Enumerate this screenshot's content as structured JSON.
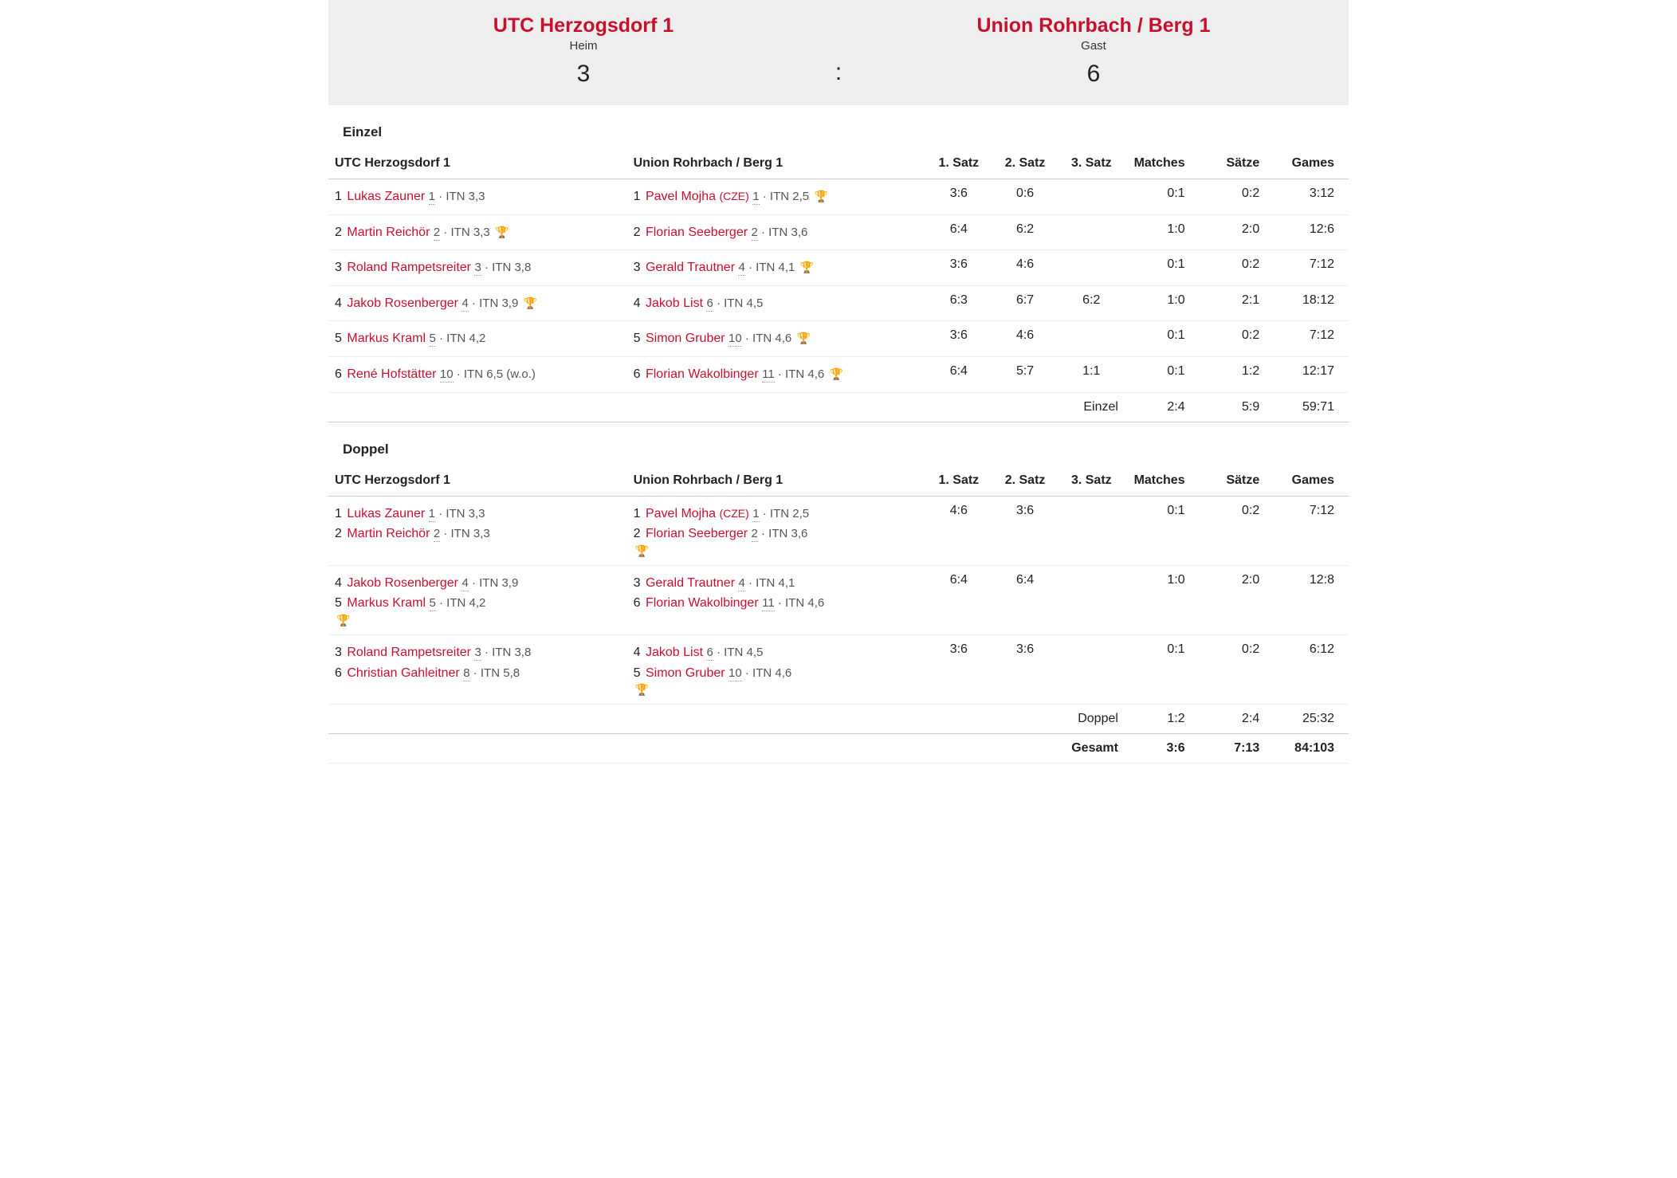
{
  "colors": {
    "accent": "#c8102e",
    "scorebox_bg": "#eeeeee",
    "border": "#cccccc",
    "border_light": "#eeeeee",
    "border_dark": "#888888",
    "meta": "#555555"
  },
  "scorebox": {
    "home": {
      "name": "UTC Herzogsdorf 1",
      "role": "Heim",
      "score": "3"
    },
    "away": {
      "name": "Union Rohrbach / Berg 1",
      "role": "Gast",
      "score": "6"
    },
    "sep": ":"
  },
  "labels": {
    "einzel": "Einzel",
    "doppel": "Doppel",
    "col_home": "UTC Herzogsdorf 1",
    "col_away": "Union Rohrbach / Berg 1",
    "satz1": "1. Satz",
    "satz2": "2. Satz",
    "satz3": "3. Satz",
    "matches": "Matches",
    "saetze": "Sätze",
    "games": "Games",
    "gesamt": "Gesamt"
  },
  "einzel": {
    "rows": [
      {
        "home": [
          {
            "rank": "1",
            "name": "Lukas Zauner",
            "pos": "1",
            "itn": "ITN 3,3",
            "trophy": false
          }
        ],
        "away": [
          {
            "rank": "1",
            "name": "Pavel Mojha",
            "country": "(CZE)",
            "pos": "1",
            "itn": "ITN 2,5",
            "trophy": true
          }
        ],
        "s1": "3:6",
        "s2": "0:6",
        "s3": "",
        "m": "0:1",
        "sa": "0:2",
        "g": "3:12"
      },
      {
        "home": [
          {
            "rank": "2",
            "name": "Martin Reichör",
            "pos": "2",
            "itn": "ITN 3,3",
            "trophy": true
          }
        ],
        "away": [
          {
            "rank": "2",
            "name": "Florian Seeberger",
            "pos": "2",
            "itn": "ITN 3,6",
            "trophy": false
          }
        ],
        "s1": "6:4",
        "s2": "6:2",
        "s3": "",
        "m": "1:0",
        "sa": "2:0",
        "g": "12:6"
      },
      {
        "home": [
          {
            "rank": "3",
            "name": "Roland Rampetsreiter",
            "pos": "3",
            "itn": "ITN 3,8",
            "trophy": false
          }
        ],
        "away": [
          {
            "rank": "3",
            "name": "Gerald Trautner",
            "pos": "4",
            "itn": "ITN 4,1",
            "trophy": true
          }
        ],
        "s1": "3:6",
        "s2": "4:6",
        "s3": "",
        "m": "0:1",
        "sa": "0:2",
        "g": "7:12"
      },
      {
        "home": [
          {
            "rank": "4",
            "name": "Jakob Rosenberger",
            "pos": "4",
            "itn": "ITN 3,9",
            "trophy": true
          }
        ],
        "away": [
          {
            "rank": "4",
            "name": "Jakob List",
            "pos": "6",
            "itn": "ITN 4,5",
            "trophy": false
          }
        ],
        "s1": "6:3",
        "s2": "6:7",
        "s3": "6:2",
        "m": "1:0",
        "sa": "2:1",
        "g": "18:12"
      },
      {
        "home": [
          {
            "rank": "5",
            "name": "Markus Kraml",
            "pos": "5",
            "itn": "ITN 4,2",
            "trophy": false
          }
        ],
        "away": [
          {
            "rank": "5",
            "name": "Simon Gruber",
            "pos": "10",
            "itn": "ITN 4,6",
            "trophy": true
          }
        ],
        "s1": "3:6",
        "s2": "4:6",
        "s3": "",
        "m": "0:1",
        "sa": "0:2",
        "g": "7:12"
      },
      {
        "home": [
          {
            "rank": "6",
            "name": "René Hofstätter",
            "pos": "10",
            "itn": "ITN 6,5 (w.o.)",
            "trophy": false
          }
        ],
        "away": [
          {
            "rank": "6",
            "name": "Florian Wakolbinger",
            "pos": "11",
            "itn": "ITN 4,6",
            "trophy": true
          }
        ],
        "s1": "6:4",
        "s2": "5:7",
        "s3": "1:1",
        "m": "0:1",
        "sa": "1:2",
        "g": "12:17"
      }
    ],
    "subtotal": {
      "label": "Einzel",
      "m": "2:4",
      "sa": "5:9",
      "g": "59:71"
    }
  },
  "doppel": {
    "rows": [
      {
        "home": [
          {
            "rank": "1",
            "name": "Lukas Zauner",
            "pos": "1",
            "itn": "ITN 3,3",
            "trophy": false
          },
          {
            "rank": "2",
            "name": "Martin Reichör",
            "pos": "2",
            "itn": "ITN 3,3",
            "trophy": false
          }
        ],
        "home_trophy": false,
        "away": [
          {
            "rank": "1",
            "name": "Pavel Mojha",
            "country": "(CZE)",
            "pos": "1",
            "itn": "ITN 2,5",
            "trophy": false
          },
          {
            "rank": "2",
            "name": "Florian Seeberger",
            "pos": "2",
            "itn": "ITN 3,6",
            "trophy": false
          }
        ],
        "away_trophy": true,
        "s1": "4:6",
        "s2": "3:6",
        "s3": "",
        "m": "0:1",
        "sa": "0:2",
        "g": "7:12"
      },
      {
        "home": [
          {
            "rank": "4",
            "name": "Jakob Rosenberger",
            "pos": "4",
            "itn": "ITN 3,9",
            "trophy": false
          },
          {
            "rank": "5",
            "name": "Markus Kraml",
            "pos": "5",
            "itn": "ITN 4,2",
            "trophy": false
          }
        ],
        "home_trophy": true,
        "away": [
          {
            "rank": "3",
            "name": "Gerald Trautner",
            "pos": "4",
            "itn": "ITN 4,1",
            "trophy": false
          },
          {
            "rank": "6",
            "name": "Florian Wakolbinger",
            "pos": "11",
            "itn": "ITN 4,6",
            "trophy": false
          }
        ],
        "away_trophy": false,
        "s1": "6:4",
        "s2": "6:4",
        "s3": "",
        "m": "1:0",
        "sa": "2:0",
        "g": "12:8"
      },
      {
        "home": [
          {
            "rank": "3",
            "name": "Roland Rampetsreiter",
            "pos": "3",
            "itn": "ITN 3,8",
            "trophy": false
          },
          {
            "rank": "6",
            "name": "Christian Gahleitner",
            "pos": "8",
            "itn": "ITN 5,8",
            "trophy": false
          }
        ],
        "home_trophy": false,
        "away": [
          {
            "rank": "4",
            "name": "Jakob List",
            "pos": "6",
            "itn": "ITN 4,5",
            "trophy": false
          },
          {
            "rank": "5",
            "name": "Simon Gruber",
            "pos": "10",
            "itn": "ITN 4,6",
            "trophy": false
          }
        ],
        "away_trophy": true,
        "s1": "3:6",
        "s2": "3:6",
        "s3": "",
        "m": "0:1",
        "sa": "0:2",
        "g": "6:12"
      }
    ],
    "subtotal": {
      "label": "Doppel",
      "m": "1:2",
      "sa": "2:4",
      "g": "25:32"
    }
  },
  "total": {
    "label": "Gesamt",
    "m": "3:6",
    "sa": "7:13",
    "g": "84:103"
  },
  "trophy_glyph": "🏆"
}
